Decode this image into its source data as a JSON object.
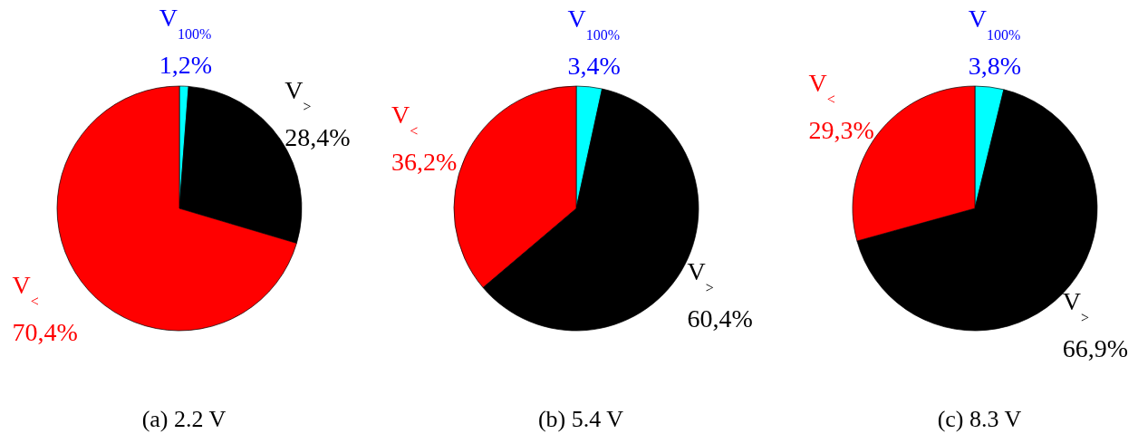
{
  "chart_data": [
    {
      "type": "pie",
      "title": "(a) 2.2 V",
      "categories": [
        "V$_{100%}$",
        "V$_{>}$",
        "V$_{<}$"
      ],
      "values": [
        1.2,
        28.4,
        70.4
      ],
      "colors": [
        "#00ffff",
        "#000000",
        "#ff0000"
      ],
      "value_labels": [
        "1,2%",
        "28,4%",
        "70,4%"
      ]
    },
    {
      "type": "pie",
      "title": "(b) 5.4 V",
      "categories": [
        "V$_{100%}$",
        "V$_{>}$",
        "V$_{<}$"
      ],
      "values": [
        3.4,
        60.4,
        36.2
      ],
      "colors": [
        "#00ffff",
        "#000000",
        "#ff0000"
      ],
      "value_labels": [
        "3,4%",
        "60,4%",
        "36,2%"
      ]
    },
    {
      "type": "pie",
      "title": "(c) 8.3 V",
      "categories": [
        "V$_{100%}$",
        "V$_{>}$",
        "V$_{<}$"
      ],
      "values": [
        3.8,
        66.9,
        29.3
      ],
      "colors": [
        "#00ffff",
        "#000000",
        "#ff0000"
      ],
      "value_labels": [
        "3,8%",
        "66,9%",
        "29,3%"
      ]
    }
  ]
}
